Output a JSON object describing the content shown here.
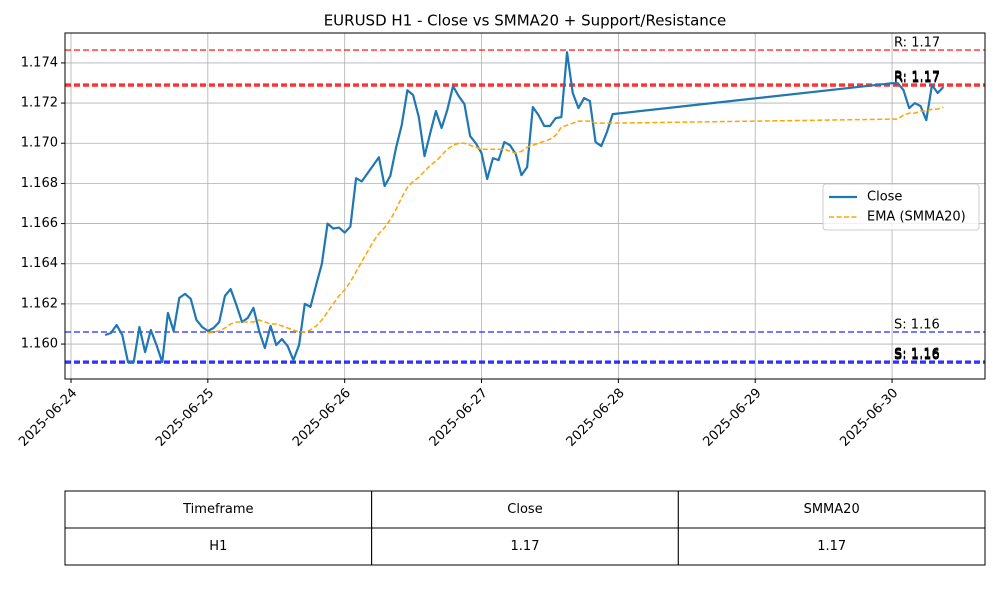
{
  "chart_data": {
    "type": "line",
    "title": "EURUSD H1 - Close vs SMMA20 + Support/Resistance",
    "x": [
      "2025-06-24 06:00",
      "2025-06-24 07:00",
      "2025-06-24 08:00",
      "2025-06-24 09:00",
      "2025-06-24 10:00",
      "2025-06-24 11:00",
      "2025-06-24 12:00",
      "2025-06-24 13:00",
      "2025-06-24 14:00",
      "2025-06-24 15:00",
      "2025-06-24 16:00",
      "2025-06-24 17:00",
      "2025-06-24 18:00",
      "2025-06-24 19:00",
      "2025-06-24 20:00",
      "2025-06-24 21:00",
      "2025-06-24 22:00",
      "2025-06-24 23:00",
      "2025-06-25 00:00",
      "2025-06-25 01:00",
      "2025-06-25 02:00",
      "2025-06-25 03:00",
      "2025-06-25 04:00",
      "2025-06-25 05:00",
      "2025-06-25 06:00",
      "2025-06-25 07:00",
      "2025-06-25 08:00",
      "2025-06-25 09:00",
      "2025-06-25 10:00",
      "2025-06-25 11:00",
      "2025-06-25 12:00",
      "2025-06-25 13:00",
      "2025-06-25 14:00",
      "2025-06-25 15:00",
      "2025-06-25 16:00",
      "2025-06-25 17:00",
      "2025-06-25 18:00",
      "2025-06-25 19:00",
      "2025-06-25 20:00",
      "2025-06-25 21:00",
      "2025-06-25 22:00",
      "2025-06-25 23:00",
      "2025-06-26 00:00",
      "2025-06-26 01:00",
      "2025-06-26 02:00",
      "2025-06-26 03:00",
      "2025-06-26 04:00",
      "2025-06-26 05:00",
      "2025-06-26 06:00",
      "2025-06-26 07:00",
      "2025-06-26 08:00",
      "2025-06-26 09:00",
      "2025-06-26 10:00",
      "2025-06-26 11:00",
      "2025-06-26 12:00",
      "2025-06-26 13:00",
      "2025-06-26 14:00",
      "2025-06-26 15:00",
      "2025-06-26 16:00",
      "2025-06-26 17:00",
      "2025-06-26 18:00",
      "2025-06-26 19:00",
      "2025-06-26 20:00",
      "2025-06-26 21:00",
      "2025-06-26 22:00",
      "2025-06-26 23:00",
      "2025-06-27 00:00",
      "2025-06-27 01:00",
      "2025-06-27 02:00",
      "2025-06-27 03:00",
      "2025-06-27 04:00",
      "2025-06-27 05:00",
      "2025-06-27 06:00",
      "2025-06-27 07:00",
      "2025-06-27 08:00",
      "2025-06-27 09:00",
      "2025-06-27 10:00",
      "2025-06-27 11:00",
      "2025-06-27 12:00",
      "2025-06-27 13:00",
      "2025-06-27 14:00",
      "2025-06-27 15:00",
      "2025-06-27 16:00",
      "2025-06-27 17:00",
      "2025-06-27 18:00",
      "2025-06-27 19:00",
      "2025-06-27 20:00",
      "2025-06-27 21:00",
      "2025-06-27 22:00",
      "2025-06-27 23:00",
      "2025-06-30 00:00",
      "2025-06-30 01:00",
      "2025-06-30 02:00",
      "2025-06-30 03:00",
      "2025-06-30 04:00",
      "2025-06-30 05:00",
      "2025-06-30 06:00",
      "2025-06-30 07:00",
      "2025-06-30 08:00",
      "2025-06-30 09:00"
    ],
    "series": [
      {
        "name": "Close",
        "color": "#1f77b4",
        "dash": false,
        "values": [
          1.16045,
          1.16055,
          1.16095,
          1.16045,
          1.1591,
          1.1591,
          1.16085,
          1.1596,
          1.1607,
          1.15995,
          1.1591,
          1.16155,
          1.16065,
          1.1623,
          1.1625,
          1.16225,
          1.1612,
          1.16085,
          1.16065,
          1.1608,
          1.1611,
          1.1624,
          1.16274,
          1.16195,
          1.1611,
          1.1613,
          1.1618,
          1.16065,
          1.1598,
          1.1609,
          1.15995,
          1.16025,
          1.1599,
          1.1592,
          1.15995,
          1.162,
          1.16185,
          1.16295,
          1.164,
          1.166,
          1.16575,
          1.1658,
          1.16555,
          1.16585,
          1.16826,
          1.1681,
          1.1685,
          1.1689,
          1.1693,
          1.16787,
          1.16837,
          1.16976,
          1.1709,
          1.17264,
          1.1724,
          1.1713,
          1.16936,
          1.1705,
          1.1716,
          1.17076,
          1.17166,
          1.17284,
          1.17235,
          1.17195,
          1.17036,
          1.17,
          1.16951,
          1.16822,
          1.16926,
          1.16916,
          1.17006,
          1.1699,
          1.16946,
          1.16841,
          1.16881,
          1.1718,
          1.1714,
          1.17086,
          1.17086,
          1.17125,
          1.1713,
          1.17453,
          1.1725,
          1.17175,
          1.17225,
          1.1721,
          1.17006,
          1.16986,
          1.17056,
          1.17145,
          1.17299,
          1.17299,
          1.17265,
          1.17175,
          1.172,
          1.17185,
          1.17115,
          1.1729,
          1.1725,
          1.1728
        ]
      },
      {
        "name": "EMA (SMMA20)",
        "color": "#ffa500",
        "dash": true,
        "values": [
          null,
          null,
          null,
          null,
          null,
          null,
          null,
          null,
          null,
          null,
          null,
          null,
          null,
          null,
          null,
          null,
          null,
          null,
          1.16055,
          1.1606,
          1.16065,
          1.1608,
          1.161,
          1.1611,
          1.1611,
          1.1611,
          1.1611,
          1.1612,
          1.1611,
          1.161,
          1.161,
          1.1609,
          1.1608,
          1.1607,
          1.1606,
          1.1606,
          1.1607,
          1.1609,
          1.1612,
          1.1616,
          1.162,
          1.1624,
          1.1627,
          1.1631,
          1.1636,
          1.1641,
          1.1646,
          1.1651,
          1.1655,
          1.1658,
          1.1662,
          1.1667,
          1.1673,
          1.1678,
          1.1681,
          1.1683,
          1.1686,
          1.1689,
          1.1691,
          1.1694,
          1.1697,
          1.1699,
          1.17,
          1.17,
          1.1699,
          1.1698,
          1.1697,
          1.1697,
          1.1697,
          1.1697,
          1.1697,
          1.1696,
          1.1695,
          1.1696,
          1.1698,
          1.1699,
          1.17,
          1.1701,
          1.1702,
          1.1704,
          1.1708,
          1.1709,
          1.171,
          1.1711,
          1.1711,
          1.1711,
          1.171,
          1.171,
          1.171,
          1.171,
          1.1712,
          1.1712,
          1.1714,
          1.1715,
          1.1715,
          1.1716,
          1.1716,
          1.1717,
          1.1717,
          1.1718
        ]
      }
    ],
    "levels": [
      {
        "label": "R: 1.17",
        "value": 1.17464,
        "color": "#ff0000"
      },
      {
        "label": "R: 1.17",
        "value": 1.1729,
        "color": "#ff0000"
      },
      {
        "label": "R: 1.17",
        "value": 1.17295,
        "color": "#ff0000"
      },
      {
        "label": "R: 1.17",
        "value": 1.17285,
        "color": "#ff0000"
      },
      {
        "label": "S: 1.16",
        "value": 1.1606,
        "color": "#0000ff"
      },
      {
        "label": "S: 1.16",
        "value": 1.1591,
        "color": "#0000ff"
      },
      {
        "label": "S: 1.16",
        "value": 1.15915,
        "color": "#0000ff"
      },
      {
        "label": "S: 1.16",
        "value": 1.15905,
        "color": "#0000ff"
      }
    ],
    "xlim": [
      "2025-06-23 22:57",
      "2025-06-30 16:18"
    ],
    "xticks": [
      "2025-06-24",
      "2025-06-25",
      "2025-06-26",
      "2025-06-27",
      "2025-06-28",
      "2025-06-29",
      "2025-06-30"
    ],
    "ylim": [
      1.15826,
      1.17549
    ],
    "yticks": [
      {
        "value": 1.16,
        "label": "1.160"
      },
      1.162,
      1.164,
      1.166,
      1.168,
      {
        "value": 1.17,
        "label": "1.170"
      },
      1.172,
      1.174
    ],
    "grid": true,
    "legend": "center right"
  },
  "table": {
    "header": [
      "Timeframe",
      "Close",
      "SMMA20"
    ],
    "rows": [
      [
        "H1",
        "1.17",
        "1.17"
      ]
    ]
  }
}
